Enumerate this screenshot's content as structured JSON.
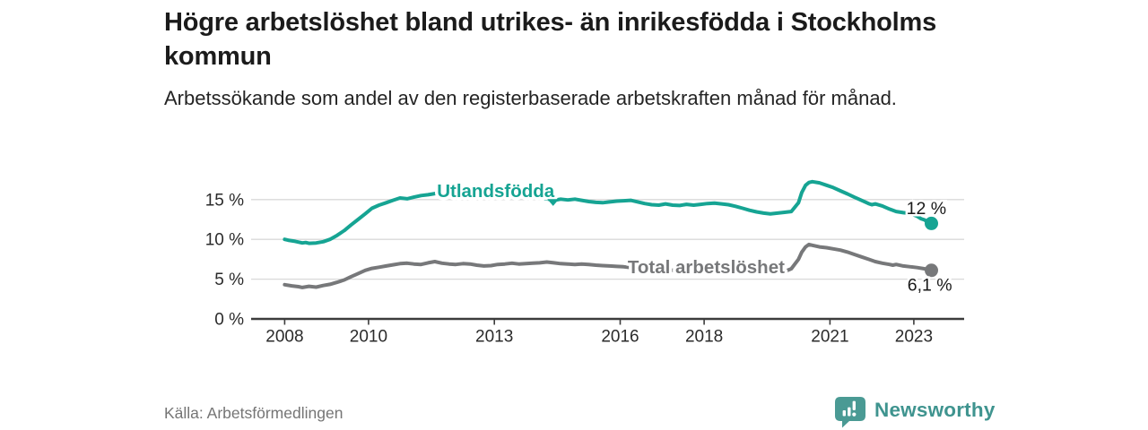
{
  "header": {
    "title": "Högre arbetslöshet bland utrikes- än inrikesfödda i Stockholms kommun",
    "subtitle": "Arbetssökande som andel av den registerbaserade arbetskraften månad för månad."
  },
  "footer": {
    "source": "Källa: Arbetsförmedlingen",
    "brand": "Newsworthy"
  },
  "colors": {
    "accent_teal": "#16A493",
    "series_gray": "#77787A",
    "brand_teal": "#4A9A94",
    "text_dark": "#1b1b1b"
  },
  "chart_data": {
    "type": "line",
    "title": "Högre arbetslöshet bland utrikes- än inrikesfödda i Stockholms kommun",
    "subtitle": "Arbetssökande som andel av den registerbaserade arbetskraften månad för månad.",
    "source": "Källa: Arbetsförmedlingen",
    "grid": true,
    "legend_position": "inline-labels",
    "style": {
      "grid_color": "#d9d9d9",
      "axis_color": "#3c3c3c",
      "tick_color": "#2b2b2b",
      "value_color": "#1a1a1a"
    },
    "x_axis": {
      "range": [
        2007.2,
        2024.2
      ],
      "ticks": [
        {
          "v": 2008,
          "label": "2008"
        },
        {
          "v": 2010,
          "label": "2010"
        },
        {
          "v": 2013,
          "label": "2013"
        },
        {
          "v": 2016,
          "label": "2016"
        },
        {
          "v": 2018,
          "label": "2018"
        },
        {
          "v": 2021,
          "label": "2021"
        },
        {
          "v": 2023,
          "label": "2023"
        }
      ]
    },
    "y_axis": {
      "range": [
        0,
        18.8
      ],
      "unit": "%",
      "ticks": [
        {
          "v": 0,
          "label": "0 %"
        },
        {
          "v": 5,
          "label": "5 %"
        },
        {
          "v": 10,
          "label": "10 %"
        },
        {
          "v": 15,
          "label": "15 %"
        }
      ]
    },
    "pointer": {
      "x": 2014.4,
      "top": 15.05,
      "tip": 14.2,
      "color": "#16A493"
    },
    "series": [
      {
        "id": "utlandsfodda",
        "name": "Utlandsfödda",
        "color": "#16A493",
        "label": {
          "x": 2011.63,
          "y": 15.33,
          "anchor": "start"
        },
        "end_label": {
          "text": "12 %",
          "x": 2023.3,
          "y": 13.15
        },
        "points": [
          [
            2008.0,
            10.0
          ],
          [
            2008.08,
            9.9
          ],
          [
            2008.25,
            9.75
          ],
          [
            2008.42,
            9.55
          ],
          [
            2008.5,
            9.6
          ],
          [
            2008.58,
            9.5
          ],
          [
            2008.75,
            9.55
          ],
          [
            2008.92,
            9.7
          ],
          [
            2009.08,
            10.0
          ],
          [
            2009.25,
            10.5
          ],
          [
            2009.42,
            11.1
          ],
          [
            2009.58,
            11.8
          ],
          [
            2009.75,
            12.5
          ],
          [
            2009.92,
            13.2
          ],
          [
            2010.08,
            13.9
          ],
          [
            2010.25,
            14.3
          ],
          [
            2010.42,
            14.6
          ],
          [
            2010.58,
            14.9
          ],
          [
            2010.75,
            15.2
          ],
          [
            2010.92,
            15.1
          ],
          [
            2011.08,
            15.3
          ],
          [
            2011.25,
            15.5
          ],
          [
            2011.42,
            15.6
          ],
          [
            2011.58,
            15.75
          ],
          [
            2011.75,
            15.85
          ],
          [
            2011.92,
            15.8
          ],
          [
            2012.08,
            16.0
          ],
          [
            2012.25,
            15.9
          ],
          [
            2012.42,
            15.85
          ],
          [
            2012.58,
            15.95
          ],
          [
            2012.75,
            15.8
          ],
          [
            2012.92,
            15.7
          ],
          [
            2013.08,
            15.75
          ],
          [
            2013.25,
            15.85
          ],
          [
            2013.42,
            15.8
          ],
          [
            2013.58,
            15.7
          ],
          [
            2013.75,
            15.55
          ],
          [
            2013.92,
            15.4
          ],
          [
            2014.08,
            15.25
          ],
          [
            2014.25,
            15.1
          ],
          [
            2014.42,
            14.9
          ],
          [
            2014.58,
            15.05
          ],
          [
            2014.75,
            14.95
          ],
          [
            2014.92,
            15.05
          ],
          [
            2015.08,
            14.9
          ],
          [
            2015.25,
            14.75
          ],
          [
            2015.42,
            14.65
          ],
          [
            2015.58,
            14.6
          ],
          [
            2015.75,
            14.7
          ],
          [
            2015.92,
            14.8
          ],
          [
            2016.08,
            14.85
          ],
          [
            2016.25,
            14.9
          ],
          [
            2016.42,
            14.7
          ],
          [
            2016.58,
            14.5
          ],
          [
            2016.75,
            14.35
          ],
          [
            2016.92,
            14.3
          ],
          [
            2017.08,
            14.45
          ],
          [
            2017.25,
            14.3
          ],
          [
            2017.42,
            14.25
          ],
          [
            2017.58,
            14.4
          ],
          [
            2017.75,
            14.3
          ],
          [
            2017.92,
            14.4
          ],
          [
            2018.08,
            14.5
          ],
          [
            2018.25,
            14.55
          ],
          [
            2018.42,
            14.45
          ],
          [
            2018.58,
            14.35
          ],
          [
            2018.75,
            14.15
          ],
          [
            2018.92,
            13.9
          ],
          [
            2019.08,
            13.65
          ],
          [
            2019.25,
            13.45
          ],
          [
            2019.42,
            13.3
          ],
          [
            2019.58,
            13.2
          ],
          [
            2019.75,
            13.3
          ],
          [
            2019.92,
            13.4
          ],
          [
            2020.08,
            13.5
          ],
          [
            2020.25,
            14.6
          ],
          [
            2020.33,
            15.9
          ],
          [
            2020.42,
            16.8
          ],
          [
            2020.5,
            17.15
          ],
          [
            2020.58,
            17.25
          ],
          [
            2020.75,
            17.1
          ],
          [
            2020.92,
            16.8
          ],
          [
            2021.08,
            16.5
          ],
          [
            2021.25,
            16.1
          ],
          [
            2021.42,
            15.7
          ],
          [
            2021.58,
            15.3
          ],
          [
            2021.75,
            14.9
          ],
          [
            2021.92,
            14.5
          ],
          [
            2022.0,
            14.35
          ],
          [
            2022.08,
            14.45
          ],
          [
            2022.25,
            14.2
          ],
          [
            2022.42,
            13.8
          ],
          [
            2022.58,
            13.5
          ],
          [
            2022.75,
            13.35
          ],
          [
            2022.92,
            13.25
          ],
          [
            2023.08,
            12.9
          ],
          [
            2023.17,
            12.6
          ],
          [
            2023.25,
            12.45
          ],
          [
            2023.33,
            12.2
          ],
          [
            2023.42,
            12.0
          ]
        ]
      },
      {
        "id": "total",
        "name": "Total arbetslöshet",
        "color": "#77787A",
        "label": {
          "x": 2016.18,
          "y": 5.72,
          "anchor": "start"
        },
        "end_label": {
          "text": "6,1 %",
          "x": 2023.38,
          "y": 3.55
        },
        "points": [
          [
            2008.0,
            4.3
          ],
          [
            2008.17,
            4.15
          ],
          [
            2008.33,
            4.05
          ],
          [
            2008.42,
            3.95
          ],
          [
            2008.58,
            4.1
          ],
          [
            2008.75,
            4.0
          ],
          [
            2008.92,
            4.2
          ],
          [
            2009.08,
            4.35
          ],
          [
            2009.25,
            4.6
          ],
          [
            2009.42,
            4.9
          ],
          [
            2009.58,
            5.3
          ],
          [
            2009.75,
            5.7
          ],
          [
            2009.92,
            6.1
          ],
          [
            2010.08,
            6.35
          ],
          [
            2010.25,
            6.5
          ],
          [
            2010.42,
            6.65
          ],
          [
            2010.58,
            6.8
          ],
          [
            2010.75,
            6.95
          ],
          [
            2010.92,
            7.0
          ],
          [
            2011.08,
            6.9
          ],
          [
            2011.25,
            6.85
          ],
          [
            2011.42,
            7.05
          ],
          [
            2011.58,
            7.2
          ],
          [
            2011.75,
            7.0
          ],
          [
            2011.92,
            6.9
          ],
          [
            2012.08,
            6.85
          ],
          [
            2012.25,
            6.95
          ],
          [
            2012.42,
            6.9
          ],
          [
            2012.58,
            6.75
          ],
          [
            2012.75,
            6.65
          ],
          [
            2012.92,
            6.7
          ],
          [
            2013.08,
            6.85
          ],
          [
            2013.25,
            6.9
          ],
          [
            2013.42,
            7.0
          ],
          [
            2013.58,
            6.9
          ],
          [
            2013.75,
            6.95
          ],
          [
            2013.92,
            7.0
          ],
          [
            2014.08,
            7.05
          ],
          [
            2014.25,
            7.15
          ],
          [
            2014.42,
            7.05
          ],
          [
            2014.58,
            6.95
          ],
          [
            2014.75,
            6.9
          ],
          [
            2014.92,
            6.85
          ],
          [
            2015.08,
            6.9
          ],
          [
            2015.25,
            6.85
          ],
          [
            2015.42,
            6.75
          ],
          [
            2015.58,
            6.7
          ],
          [
            2015.75,
            6.65
          ],
          [
            2015.92,
            6.6
          ],
          [
            2016.08,
            6.55
          ],
          [
            2016.25,
            6.45
          ],
          [
            2016.42,
            6.35
          ],
          [
            2016.58,
            6.3
          ],
          [
            2016.75,
            6.25
          ],
          [
            2017.0,
            6.15
          ],
          [
            2017.33,
            6.1
          ],
          [
            2017.67,
            6.05
          ],
          [
            2018.0,
            6.0
          ],
          [
            2018.33,
            6.0
          ],
          [
            2018.67,
            5.95
          ],
          [
            2019.0,
            5.9
          ],
          [
            2019.33,
            5.85
          ],
          [
            2019.67,
            5.85
          ],
          [
            2019.92,
            5.95
          ],
          [
            2020.08,
            6.3
          ],
          [
            2020.25,
            7.5
          ],
          [
            2020.33,
            8.4
          ],
          [
            2020.42,
            9.05
          ],
          [
            2020.5,
            9.35
          ],
          [
            2020.58,
            9.25
          ],
          [
            2020.75,
            9.05
          ],
          [
            2020.92,
            8.95
          ],
          [
            2021.08,
            8.8
          ],
          [
            2021.25,
            8.65
          ],
          [
            2021.42,
            8.4
          ],
          [
            2021.58,
            8.1
          ],
          [
            2021.75,
            7.8
          ],
          [
            2021.92,
            7.5
          ],
          [
            2022.08,
            7.2
          ],
          [
            2022.25,
            7.0
          ],
          [
            2022.42,
            6.85
          ],
          [
            2022.5,
            6.75
          ],
          [
            2022.58,
            6.85
          ],
          [
            2022.75,
            6.65
          ],
          [
            2022.92,
            6.55
          ],
          [
            2023.08,
            6.45
          ],
          [
            2023.25,
            6.3
          ],
          [
            2023.33,
            6.2
          ],
          [
            2023.42,
            6.1
          ]
        ]
      }
    ]
  }
}
